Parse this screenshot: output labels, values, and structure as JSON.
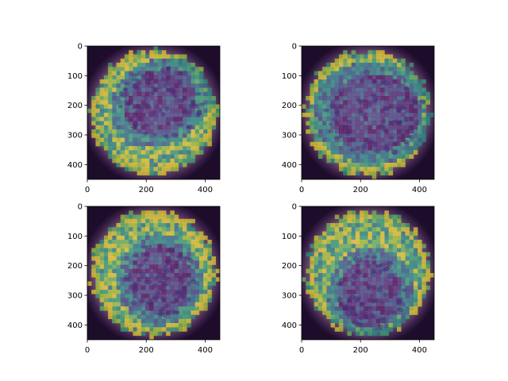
{
  "chart_data": [
    {
      "type": "heatmap",
      "panel": "top-left",
      "xlim": [
        0,
        450
      ],
      "ylim": [
        450,
        0
      ],
      "x_ticks": [
        0,
        200,
        400
      ],
      "y_ticks": [
        0,
        100,
        200,
        300,
        400
      ],
      "x_tick_labels": [
        "0",
        "200",
        "400"
      ],
      "y_tick_labels": [
        "0",
        "100",
        "200",
        "300",
        "400"
      ],
      "colormap": "viridis",
      "grid": false,
      "title": "",
      "xlabel": "",
      "ylabel": ""
    },
    {
      "type": "heatmap",
      "panel": "top-right",
      "xlim": [
        0,
        450
      ],
      "ylim": [
        450,
        0
      ],
      "x_ticks": [
        0,
        200,
        400
      ],
      "y_ticks": [
        0,
        100,
        200,
        300,
        400
      ],
      "x_tick_labels": [
        "0",
        "200",
        "400"
      ],
      "y_tick_labels": [
        "0",
        "100",
        "200",
        "300",
        "400"
      ],
      "colormap": "viridis",
      "grid": false,
      "title": "",
      "xlabel": "",
      "ylabel": ""
    },
    {
      "type": "heatmap",
      "panel": "bottom-left",
      "xlim": [
        0,
        450
      ],
      "ylim": [
        450,
        0
      ],
      "x_ticks": [
        0,
        200,
        400
      ],
      "y_ticks": [
        0,
        100,
        200,
        300,
        400
      ],
      "x_tick_labels": [
        "0",
        "200",
        "400"
      ],
      "y_tick_labels": [
        "0",
        "100",
        "200",
        "300",
        "400"
      ],
      "colormap": "viridis",
      "grid": false,
      "title": "",
      "xlabel": "",
      "ylabel": ""
    },
    {
      "type": "heatmap",
      "panel": "bottom-right",
      "xlim": [
        0,
        450
      ],
      "ylim": [
        450,
        0
      ],
      "x_ticks": [
        0,
        200,
        400
      ],
      "y_ticks": [
        0,
        100,
        200,
        300,
        400
      ],
      "x_tick_labels": [
        "0",
        "200",
        "400"
      ],
      "y_tick_labels": [
        "0",
        "100",
        "200",
        "300",
        "400"
      ],
      "colormap": "viridis",
      "grid": false,
      "title": "",
      "xlabel": "",
      "ylabel": ""
    }
  ]
}
